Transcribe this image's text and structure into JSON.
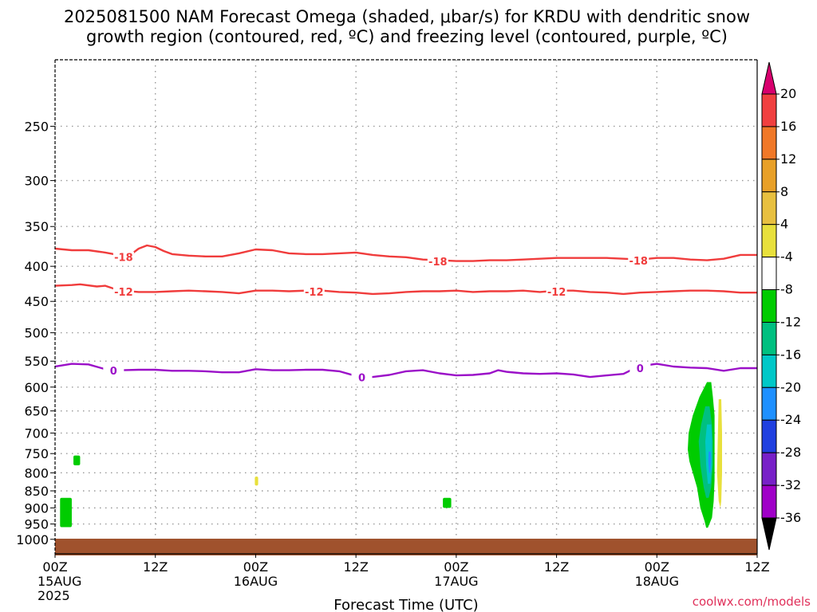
{
  "title_line1": "2025081500 NAM Forecast Omega (shaded, μbar/s) for KRDU with dendritic snow",
  "title_line2": "growth region (contoured, red, ºC) and freezing level (contoured, purple, ºC)",
  "credit": "coolwx.com/models",
  "chart_data": {
    "type": "contour",
    "xlabel": "Forecast Time (UTC)",
    "xlim": [
      0,
      84
    ],
    "x_ticks": [
      {
        "hour": 0,
        "label": "00Z",
        "sub": "15AUG",
        "sub2": "2025"
      },
      {
        "hour": 12,
        "label": "12Z",
        "sub": "",
        "sub2": ""
      },
      {
        "hour": 24,
        "label": "00Z",
        "sub": "16AUG",
        "sub2": ""
      },
      {
        "hour": 36,
        "label": "12Z",
        "sub": "",
        "sub2": ""
      },
      {
        "hour": 48,
        "label": "00Z",
        "sub": "17AUG",
        "sub2": ""
      },
      {
        "hour": 60,
        "label": "12Z",
        "sub": "",
        "sub2": ""
      },
      {
        "hour": 72,
        "label": "00Z",
        "sub": "18AUG",
        "sub2": ""
      },
      {
        "hour": 84,
        "label": "12Z",
        "sub": "",
        "sub2": ""
      }
    ],
    "ylim": [
      1050,
      200
    ],
    "y_scale": "log",
    "y_ticks": [
      250,
      300,
      350,
      400,
      450,
      500,
      550,
      600,
      650,
      700,
      750,
      800,
      850,
      900,
      950,
      1000
    ],
    "grid": true,
    "contours": [
      {
        "label": "-18",
        "color": "#f03c3c",
        "label_hours": [
          8.2,
          45.8,
          69.8
        ],
        "points": [
          [
            0,
            377
          ],
          [
            2,
            379
          ],
          [
            4,
            379
          ],
          [
            6,
            382
          ],
          [
            8,
            386
          ],
          [
            9,
            385
          ],
          [
            10,
            377
          ],
          [
            11,
            373
          ],
          [
            12,
            375
          ],
          [
            13,
            380
          ],
          [
            14,
            384
          ],
          [
            16,
            386
          ],
          [
            18,
            387
          ],
          [
            20,
            387
          ],
          [
            22,
            383
          ],
          [
            24,
            378
          ],
          [
            26,
            379
          ],
          [
            28,
            383
          ],
          [
            30,
            384
          ],
          [
            32,
            384
          ],
          [
            34,
            383
          ],
          [
            36,
            382
          ],
          [
            38,
            385
          ],
          [
            40,
            387
          ],
          [
            42,
            388
          ],
          [
            44,
            391
          ],
          [
            46,
            392
          ],
          [
            48,
            393
          ],
          [
            50,
            393
          ],
          [
            52,
            392
          ],
          [
            54,
            392
          ],
          [
            56,
            391
          ],
          [
            58,
            390
          ],
          [
            60,
            389
          ],
          [
            62,
            389
          ],
          [
            64,
            389
          ],
          [
            66,
            389
          ],
          [
            68,
            390
          ],
          [
            70,
            391
          ],
          [
            72,
            389
          ],
          [
            74,
            389
          ],
          [
            76,
            391
          ],
          [
            78,
            392
          ],
          [
            80,
            390
          ],
          [
            82,
            385
          ],
          [
            84,
            385
          ]
        ]
      },
      {
        "label": "-12",
        "color": "#f03c3c",
        "label_hours": [
          8.2,
          31.0,
          60.0
        ],
        "points": [
          [
            0,
            427
          ],
          [
            2,
            426
          ],
          [
            3,
            425
          ],
          [
            5,
            428
          ],
          [
            6,
            427
          ],
          [
            7,
            431
          ],
          [
            8,
            434
          ],
          [
            10,
            436
          ],
          [
            12,
            436
          ],
          [
            14,
            435
          ],
          [
            16,
            434
          ],
          [
            18,
            435
          ],
          [
            20,
            436
          ],
          [
            22,
            438
          ],
          [
            24,
            434
          ],
          [
            26,
            434
          ],
          [
            28,
            435
          ],
          [
            30,
            434
          ],
          [
            32,
            434
          ],
          [
            34,
            436
          ],
          [
            36,
            437
          ],
          [
            38,
            439
          ],
          [
            40,
            438
          ],
          [
            42,
            436
          ],
          [
            44,
            435
          ],
          [
            46,
            435
          ],
          [
            48,
            434
          ],
          [
            50,
            436
          ],
          [
            52,
            435
          ],
          [
            54,
            435
          ],
          [
            56,
            434
          ],
          [
            58,
            436
          ],
          [
            60,
            434
          ],
          [
            62,
            434
          ],
          [
            64,
            436
          ],
          [
            66,
            437
          ],
          [
            68,
            439
          ],
          [
            70,
            437
          ],
          [
            72,
            436
          ],
          [
            74,
            435
          ],
          [
            76,
            434
          ],
          [
            78,
            434
          ],
          [
            80,
            435
          ],
          [
            82,
            437
          ],
          [
            84,
            437
          ]
        ]
      },
      {
        "label": "0",
        "color": "#9b10c8",
        "label_hours": [
          7.0,
          36.7,
          70.0
        ],
        "points": [
          [
            0,
            560
          ],
          [
            2,
            555
          ],
          [
            4,
            556
          ],
          [
            6,
            565
          ],
          [
            8,
            567
          ],
          [
            10,
            566
          ],
          [
            12,
            566
          ],
          [
            14,
            568
          ],
          [
            16,
            568
          ],
          [
            18,
            569
          ],
          [
            20,
            571
          ],
          [
            22,
            571
          ],
          [
            24,
            565
          ],
          [
            26,
            567
          ],
          [
            28,
            567
          ],
          [
            30,
            566
          ],
          [
            32,
            566
          ],
          [
            34,
            569
          ],
          [
            36,
            578
          ],
          [
            38,
            580
          ],
          [
            40,
            576
          ],
          [
            42,
            569
          ],
          [
            44,
            567
          ],
          [
            46,
            573
          ],
          [
            48,
            577
          ],
          [
            50,
            576
          ],
          [
            52,
            573
          ],
          [
            53,
            567
          ],
          [
            54,
            570
          ],
          [
            56,
            573
          ],
          [
            58,
            574
          ],
          [
            60,
            573
          ],
          [
            62,
            575
          ],
          [
            64,
            580
          ],
          [
            66,
            577
          ],
          [
            68,
            574
          ],
          [
            69,
            566
          ],
          [
            70,
            561
          ],
          [
            71,
            557
          ],
          [
            72,
            555
          ],
          [
            74,
            560
          ],
          [
            76,
            562
          ],
          [
            78,
            563
          ],
          [
            80,
            568
          ],
          [
            82,
            563
          ],
          [
            84,
            563
          ]
        ]
      }
    ],
    "shaded_regions": [
      {
        "color": "#00cc00",
        "hour_range": [
          0.6,
          2.0
        ],
        "pressure_range": [
          870,
          960
        ]
      },
      {
        "color": "#00cc00",
        "hour_range": [
          2.2,
          3.0
        ],
        "pressure_range": [
          755,
          780
        ]
      },
      {
        "color": "#e8e03c",
        "hour_range": [
          23.9,
          24.3
        ],
        "pressure_range": [
          810,
          835
        ]
      },
      {
        "color": "#00cc00",
        "hour_range": [
          46.4,
          47.4
        ],
        "pressure_range": [
          870,
          900
        ]
      }
    ],
    "omega_cell": {
      "center_hour": 77.5,
      "layers": [
        {
          "value": -4,
          "color": "#00cc00",
          "left": [
            [
              590,
              78.0
            ],
            [
              620,
              77.1
            ],
            [
              660,
              76.3
            ],
            [
              700,
              75.8
            ],
            [
              740,
              75.7
            ],
            [
              770,
              75.9
            ],
            [
              800,
              76.3
            ],
            [
              840,
              76.8
            ],
            [
              900,
              77.2
            ],
            [
              940,
              77.7
            ],
            [
              962,
              77.9
            ]
          ],
          "right": [
            [
              590,
              78.5
            ],
            [
              620,
              78.7
            ],
            [
              660,
              78.9
            ],
            [
              700,
              78.9
            ],
            [
              760,
              78.9
            ],
            [
              820,
              78.9
            ],
            [
              880,
              78.8
            ],
            [
              930,
              78.6
            ],
            [
              962,
              78.1
            ]
          ]
        },
        {
          "value": -8,
          "color": "#00c080",
          "left": [
            [
              640,
              77.8
            ],
            [
              680,
              77.3
            ],
            [
              720,
              77.0
            ],
            [
              780,
              77.2
            ],
            [
              840,
              77.6
            ],
            [
              870,
              77.9
            ]
          ],
          "right": [
            [
              640,
              78.3
            ],
            [
              680,
              78.6
            ],
            [
              720,
              78.7
            ],
            [
              780,
              78.7
            ],
            [
              840,
              78.5
            ],
            [
              870,
              78.2
            ]
          ]
        },
        {
          "value": -12,
          "color": "#00c8c8",
          "left": [
            [
              680,
              78.0
            ],
            [
              720,
              77.8
            ],
            [
              780,
              77.9
            ],
            [
              830,
              78.1
            ]
          ],
          "right": [
            [
              680,
              78.5
            ],
            [
              720,
              78.6
            ],
            [
              780,
              78.6
            ],
            [
              830,
              78.4
            ]
          ]
        },
        {
          "value": -16,
          "color": "#1e90ff",
          "left": [
            [
              745,
              78.2
            ],
            [
              770,
              78.15
            ],
            [
              800,
              78.25
            ]
          ],
          "right": [
            [
              745,
              78.45
            ],
            [
              770,
              78.5
            ],
            [
              800,
              78.4
            ]
          ]
        }
      ],
      "positive_band": {
        "value": 4,
        "color": "#e8e03c",
        "left": [
          [
            625,
            79.4
          ],
          [
            700,
            79.3
          ],
          [
            800,
            79.2
          ],
          [
            880,
            79.4
          ],
          [
            900,
            79.6
          ]
        ],
        "right": [
          [
            625,
            79.7
          ],
          [
            700,
            79.8
          ],
          [
            800,
            79.8
          ],
          [
            880,
            79.7
          ],
          [
            900,
            79.6
          ]
        ]
      }
    },
    "terrain": {
      "color": "#a0522d",
      "pressure_top": 998,
      "pressure_bottom": 1050
    },
    "colorbar": {
      "labels": [
        "20",
        "16",
        "12",
        "8",
        "4",
        "-4",
        "-8",
        "-12",
        "-16",
        "-20",
        "-24",
        "-28",
        "-32",
        "-36"
      ],
      "colors_top_to_bottom": [
        "#d8006e",
        "#f04040",
        "#f07828",
        "#e8a028",
        "#e8c040",
        "#e8e03c",
        "#ffffff",
        "#00cc00",
        "#00c080",
        "#00c8c8",
        "#1e90ff",
        "#2040e0",
        "#7820c8",
        "#a000c8",
        "#b4b4b4",
        "#000000"
      ]
    }
  }
}
